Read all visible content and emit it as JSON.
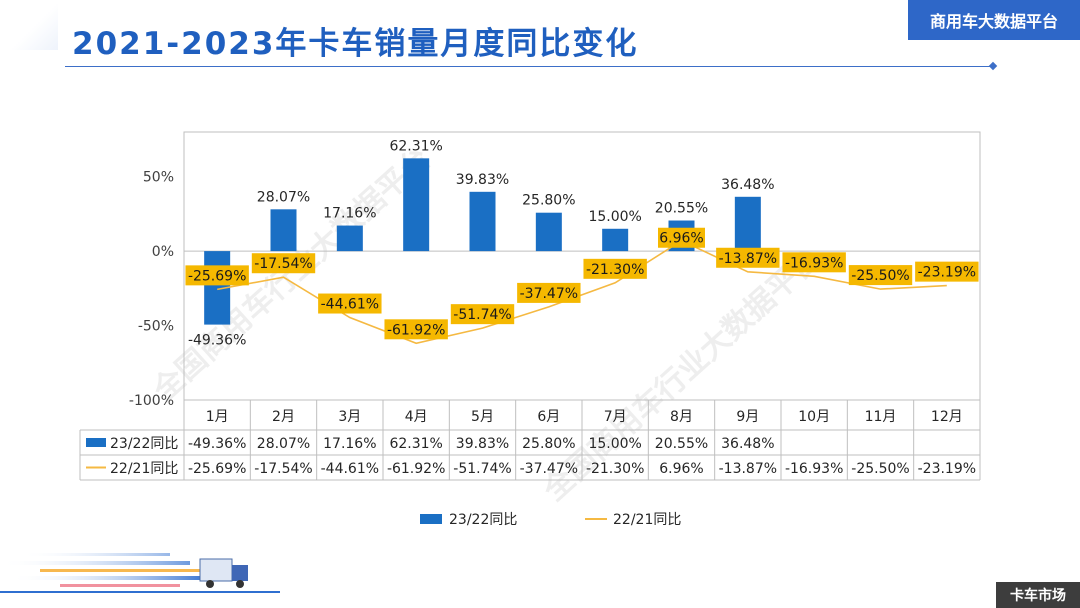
{
  "slide": {
    "title": "2021-2023年卡车销量月度同比变化",
    "platform_label": "商用车大数据平台",
    "footer_label": "卡车市场",
    "watermark": "全国商用车行业大数据平台"
  },
  "colors": {
    "bar": "#1a6fc4",
    "line": "#f5b942",
    "label_bg": "#f5b800",
    "title": "#1f5fbf"
  },
  "chart_data": {
    "type": "bar",
    "categories": [
      "1月",
      "2月",
      "3月",
      "4月",
      "5月",
      "6月",
      "7月",
      "8月",
      "9月",
      "10月",
      "11月",
      "12月"
    ],
    "ylim": [
      -100,
      80
    ],
    "yticks": [
      50,
      0,
      -50,
      -100
    ],
    "ytick_labels": [
      "50%",
      "0%",
      "-50%",
      "-100%"
    ],
    "series": [
      {
        "name": "23/22同比",
        "kind": "bar",
        "values": [
          -49.36,
          28.07,
          17.16,
          62.31,
          39.83,
          25.8,
          15.0,
          20.55,
          36.48,
          null,
          null,
          null
        ],
        "labels": [
          "-49.36%",
          "28.07%",
          "17.16%",
          "62.31%",
          "39.83%",
          "25.80%",
          "15.00%",
          "20.55%",
          "36.48%",
          "",
          "",
          ""
        ]
      },
      {
        "name": "22/21同比",
        "kind": "line",
        "values": [
          -25.69,
          -17.54,
          -44.61,
          -61.92,
          -51.74,
          -37.47,
          -21.3,
          6.96,
          -13.87,
          -16.93,
          -25.5,
          -23.19
        ],
        "labels": [
          "-25.69%",
          "-17.54%",
          "-44.61%",
          "-61.92%",
          "-51.74%",
          "-37.47%",
          "-21.30%",
          "6.96%",
          "-13.87%",
          "-16.93%",
          "-25.50%",
          "-23.19%"
        ]
      }
    ],
    "legend": "bottom"
  }
}
